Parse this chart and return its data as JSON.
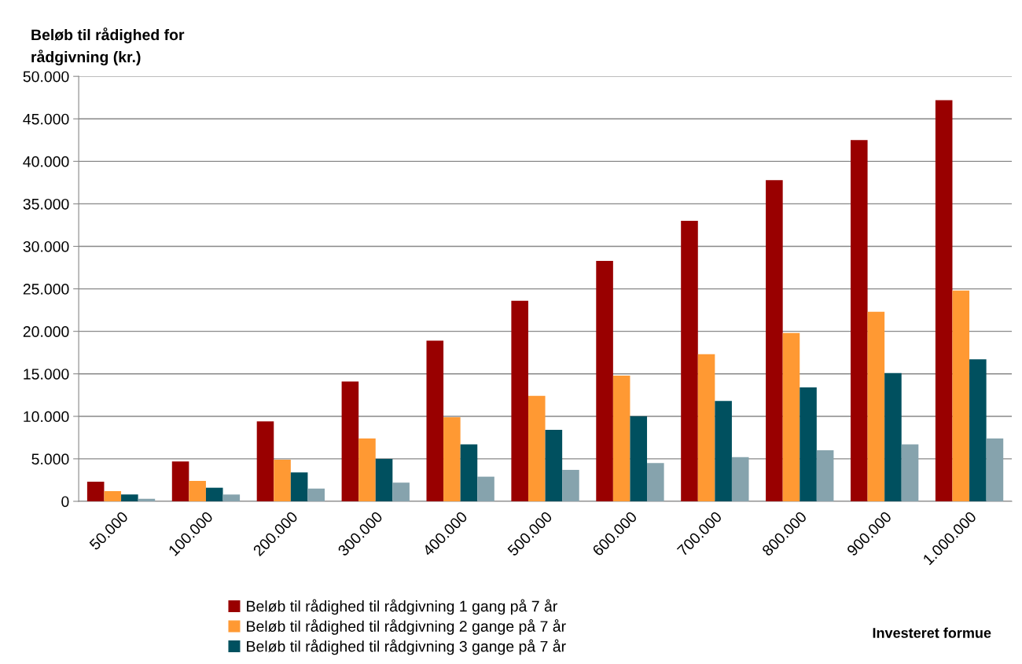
{
  "chart_data": {
    "type": "bar",
    "ylabel": "Beløb til rådighed for\nrådgivning (kr.)",
    "xlabel": "Investeret formue",
    "categories": [
      "50.000",
      "100.000",
      "200.000",
      "300.000",
      "400.000",
      "500.000",
      "600.000",
      "700.000",
      "800.000",
      "900.000",
      "1.000.000"
    ],
    "series": [
      {
        "name": "Beløb til rådighed til rådgivning 1 gang på 7 år",
        "color": "#990000",
        "values": [
          2300,
          4700,
          9400,
          14100,
          18900,
          23600,
          28300,
          33000,
          37800,
          42500,
          47200
        ]
      },
      {
        "name": "Beløb til rådighed til rådgivning 2 gange på 7 år",
        "color": "#ff9933",
        "values": [
          1200,
          2400,
          4900,
          7400,
          9900,
          12400,
          14800,
          17300,
          19800,
          22300,
          24800
        ]
      },
      {
        "name": "Beløb til rådighed til rådgivning 3 gange på 7 år",
        "color": "#00505f",
        "values": [
          800,
          1600,
          3400,
          5000,
          6700,
          8400,
          10000,
          11800,
          13400,
          15100,
          16700
        ]
      },
      {
        "color": "#86a3ad",
        "values": [
          300,
          800,
          1500,
          2200,
          2900,
          3700,
          4500,
          5200,
          6000,
          6700,
          7400
        ]
      }
    ],
    "ylim": [
      0,
      50000
    ],
    "yticks": [
      {
        "value": 0,
        "label": "0"
      },
      {
        "value": 5000,
        "label": "5.000"
      },
      {
        "value": 10000,
        "label": "10.000"
      },
      {
        "value": 15000,
        "label": "15.000"
      },
      {
        "value": 20000,
        "label": "20.000"
      },
      {
        "value": 25000,
        "label": "25.000"
      },
      {
        "value": 30000,
        "label": "30.000"
      },
      {
        "value": 35000,
        "label": "35.000"
      },
      {
        "value": 40000,
        "label": "40.000"
      },
      {
        "value": 45000,
        "label": "45.000"
      },
      {
        "value": 50000,
        "label": "50.000"
      }
    ],
    "grid": "y",
    "legend": "bottom"
  }
}
